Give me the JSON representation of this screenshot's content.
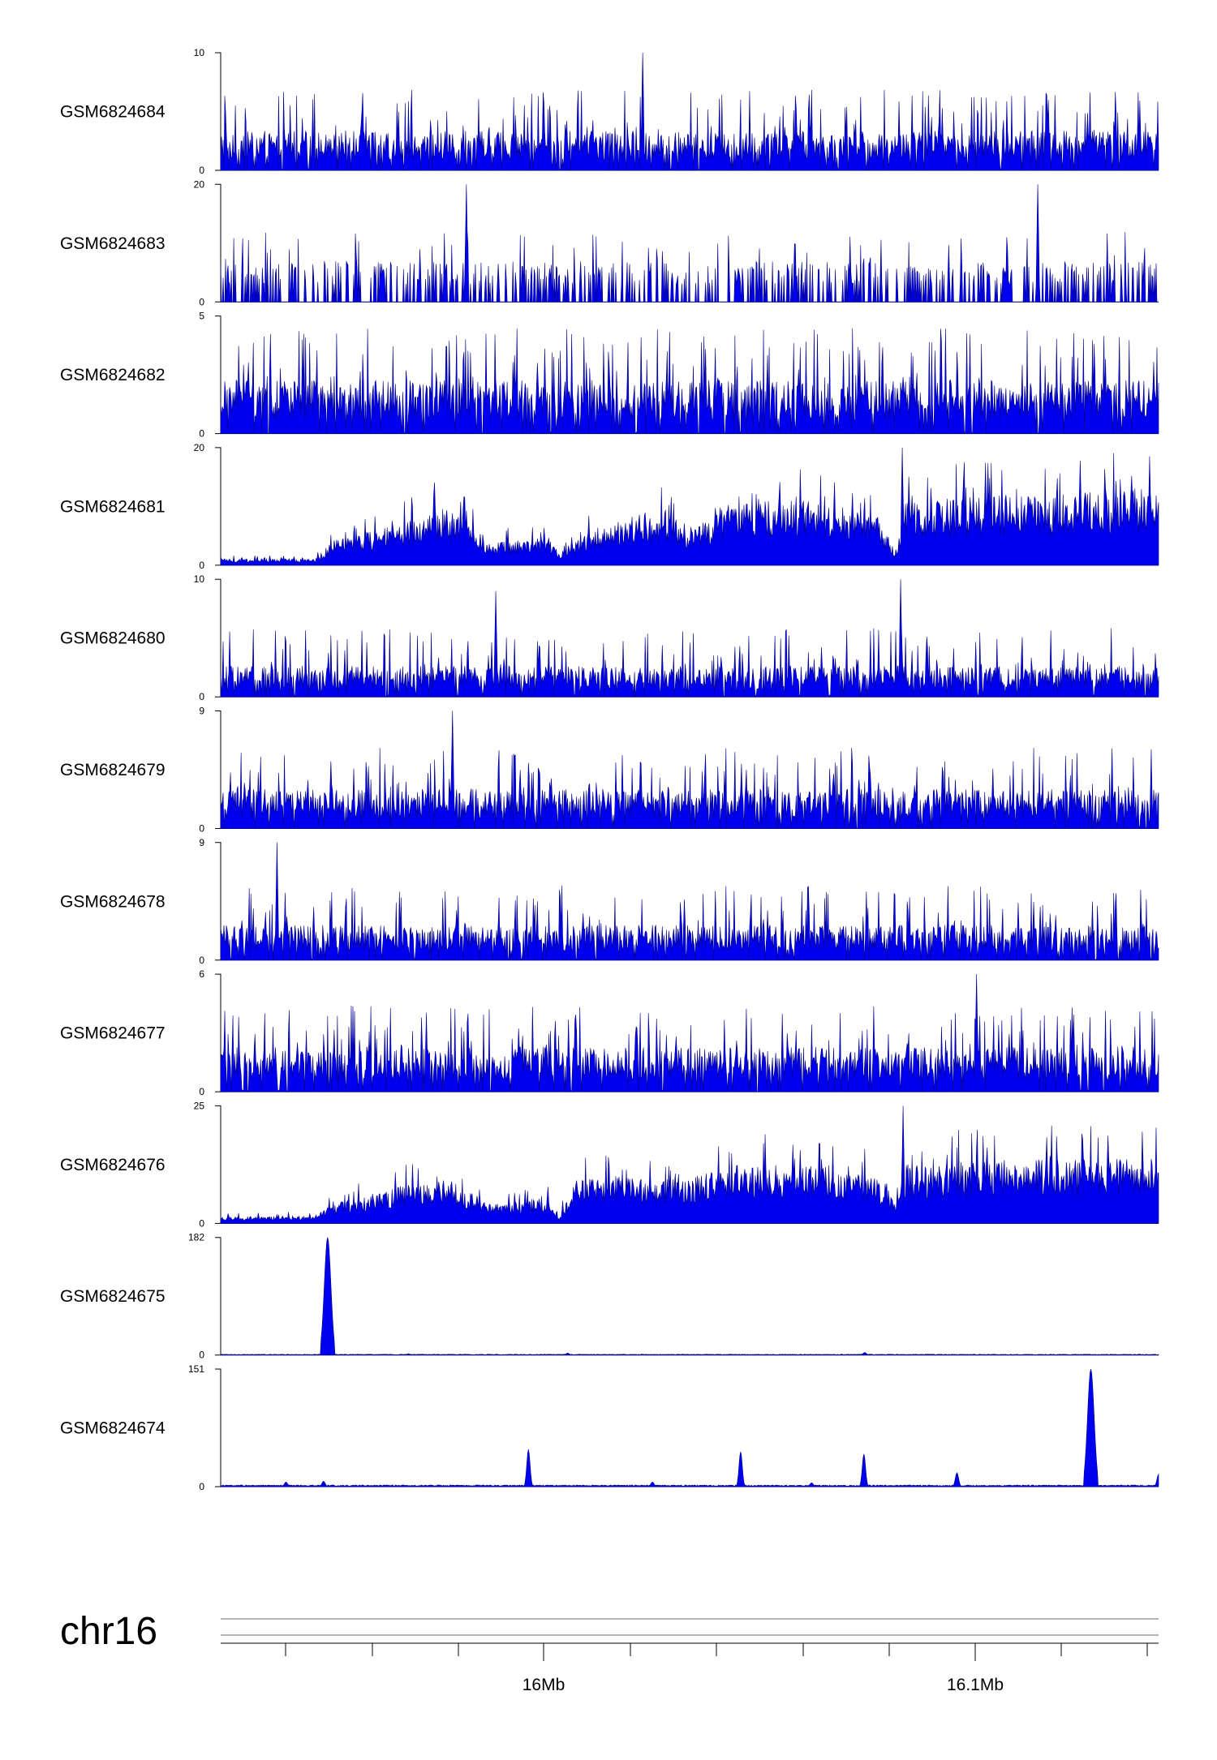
{
  "chart_data": {
    "type": "area",
    "title": "",
    "chromosome": "chr16",
    "xlabel": "",
    "x_ticks": [
      "16Mb",
      "16.1Mb"
    ],
    "color": "#0000ee",
    "tracks": [
      {
        "name": "GSM6824684",
        "ymax": "10",
        "ymin": "0",
        "max": 10,
        "profile": "noise",
        "base": 0.28,
        "spike": 0.65,
        "peaks": [
          [
            0.45,
            10
          ]
        ]
      },
      {
        "name": "GSM6824683",
        "ymax": "20",
        "ymin": "0",
        "max": 20,
        "profile": "sparse",
        "base": 0.25,
        "spike": 0.6,
        "peaks": [
          [
            0.262,
            20
          ],
          [
            0.871,
            20
          ]
        ]
      },
      {
        "name": "GSM6824682",
        "ymax": "5",
        "ymin": "0",
        "max": 5,
        "profile": "noise",
        "base": 0.38,
        "spike": 0.85,
        "peaks": []
      },
      {
        "name": "GSM6824681",
        "ymax": "20",
        "ymin": "0",
        "max": 20,
        "profile": "atac",
        "envelope": [
          [
            0,
            0.05
          ],
          [
            0.1,
            0.05
          ],
          [
            0.12,
            0.2
          ],
          [
            0.17,
            0.28
          ],
          [
            0.2,
            0.35
          ],
          [
            0.24,
            0.45
          ],
          [
            0.29,
            0.18
          ],
          [
            0.35,
            0.22
          ],
          [
            0.36,
            0.1
          ],
          [
            0.4,
            0.3
          ],
          [
            0.47,
            0.45
          ],
          [
            0.5,
            0.3
          ],
          [
            0.55,
            0.5
          ],
          [
            0.65,
            0.5
          ],
          [
            0.7,
            0.4
          ],
          [
            0.72,
            0.1
          ],
          [
            0.73,
            0.5
          ],
          [
            0.85,
            0.55
          ],
          [
            1.0,
            0.6
          ]
        ],
        "peaks": [
          [
            0.727,
            20
          ]
        ]
      },
      {
        "name": "GSM6824680",
        "ymax": "10",
        "ymin": "0",
        "max": 10,
        "profile": "noise",
        "base": 0.22,
        "spike": 0.55,
        "peaks": [
          [
            0.725,
            10
          ],
          [
            0.293,
            9
          ]
        ]
      },
      {
        "name": "GSM6824679",
        "ymax": "9",
        "ymin": "0",
        "max": 9,
        "profile": "noise",
        "base": 0.28,
        "spike": 0.65,
        "peaks": [
          [
            0.247,
            9
          ]
        ]
      },
      {
        "name": "GSM6824678",
        "ymax": "9",
        "ymin": "0",
        "max": 9,
        "profile": "noise",
        "base": 0.25,
        "spike": 0.6,
        "peaks": [
          [
            0.06,
            9
          ]
        ]
      },
      {
        "name": "GSM6824677",
        "ymax": "6",
        "ymin": "0",
        "max": 6,
        "profile": "noise",
        "base": 0.32,
        "spike": 0.7,
        "peaks": [
          [
            0.806,
            6
          ]
        ]
      },
      {
        "name": "GSM6824676",
        "ymax": "25",
        "ymin": "0",
        "max": 25,
        "profile": "atac",
        "envelope": [
          [
            0,
            0.05
          ],
          [
            0.1,
            0.06
          ],
          [
            0.12,
            0.15
          ],
          [
            0.17,
            0.25
          ],
          [
            0.2,
            0.3
          ],
          [
            0.24,
            0.35
          ],
          [
            0.29,
            0.15
          ],
          [
            0.35,
            0.2
          ],
          [
            0.36,
            0.05
          ],
          [
            0.38,
            0.35
          ],
          [
            0.5,
            0.35
          ],
          [
            0.55,
            0.45
          ],
          [
            0.65,
            0.45
          ],
          [
            0.7,
            0.35
          ],
          [
            0.72,
            0.15
          ],
          [
            0.73,
            0.45
          ],
          [
            0.85,
            0.5
          ],
          [
            1.0,
            0.5
          ]
        ],
        "peaks": [
          [
            0.728,
            25
          ]
        ]
      },
      {
        "name": "GSM6824675",
        "ymax": "182",
        "ymin": "0",
        "max": 182,
        "profile": "flat",
        "base": 0.005,
        "peaks": [
          [
            0.114,
            182
          ],
          [
            0.687,
            4
          ],
          [
            0.37,
            3
          ],
          [
            0.2,
            2
          ]
        ]
      },
      {
        "name": "GSM6824674",
        "ymax": "151",
        "ymin": "0",
        "max": 151,
        "profile": "flat",
        "base": 0.01,
        "peaks": [
          [
            0.928,
            151
          ],
          [
            0.328,
            48
          ],
          [
            0.554,
            45
          ],
          [
            0.686,
            42
          ],
          [
            0.785,
            18
          ],
          [
            0.07,
            6
          ],
          [
            0.11,
            7
          ],
          [
            0.46,
            6
          ],
          [
            0.63,
            5
          ],
          [
            1.0,
            16
          ]
        ]
      }
    ]
  }
}
